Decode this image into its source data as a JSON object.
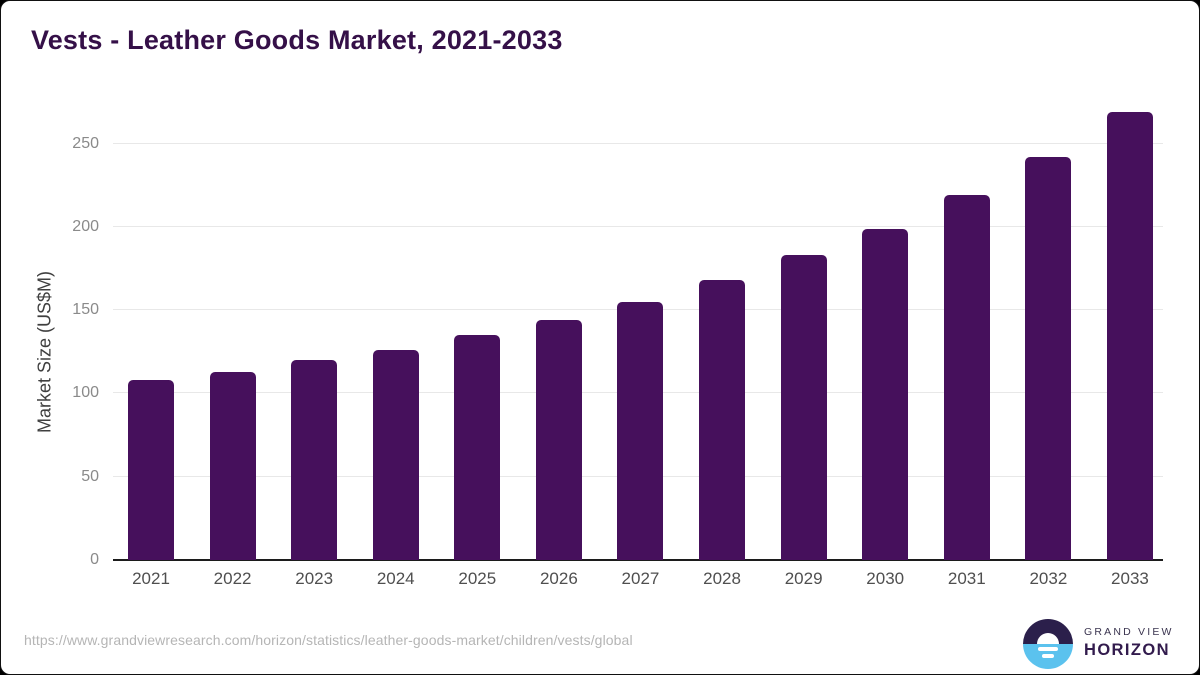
{
  "header": {
    "title": "Vests - Leather Goods Market, 2021-2033"
  },
  "chart_data": {
    "type": "bar",
    "title": "Vests - Leather Goods Market, 2021-2033",
    "categories": [
      "2021",
      "2022",
      "2023",
      "2024",
      "2025",
      "2026",
      "2027",
      "2028",
      "2029",
      "2030",
      "2031",
      "2032",
      "2033"
    ],
    "values": [
      108,
      113,
      120,
      126,
      135,
      144,
      155,
      168,
      183,
      199,
      219,
      242,
      269
    ],
    "xlabel": "",
    "ylabel": "Market Size (US$M)",
    "yticks": [
      0,
      50,
      100,
      150,
      200,
      250
    ],
    "ylim": [
      0,
      275
    ],
    "grid": "horizontal",
    "legend": "none"
  },
  "footer": {
    "source_url": "https://www.grandviewresearch.com/horizon/statistics/leather-goods-market/children/vests/global",
    "logo": {
      "line1": "GRAND VIEW",
      "line2": "HORIZON"
    }
  },
  "colors": {
    "title": "#351048",
    "bar": "#46105c",
    "axis_label": "#3f3f3f",
    "tick_label": "#8a8a8a",
    "year_label": "#4f4f4f",
    "gridline": "#e8e8e8",
    "baseline": "#1c1c1c",
    "url": "#b5b5b5",
    "logo_dark": "#2b1f4b",
    "logo_blue": "#5bc2ee",
    "logo_text1": "#3b3550",
    "logo_text2": "#321b4d"
  }
}
